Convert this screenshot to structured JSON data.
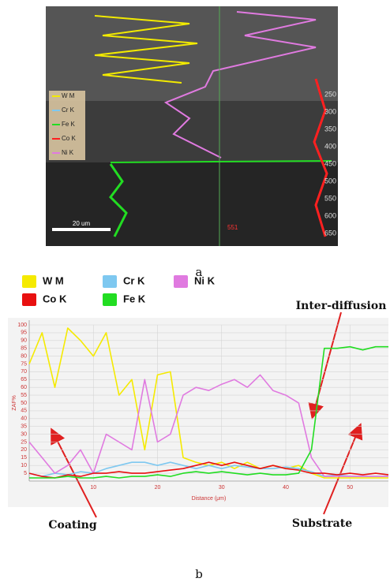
{
  "figure_a": {
    "caption": "a",
    "legend": [
      "W M",
      "Cr K",
      "Fe K",
      "Co K",
      "Ni K"
    ],
    "scale_bar": "20 um",
    "marker": "551",
    "depth_labels": [
      "250",
      "300",
      "350",
      "400",
      "450",
      "500",
      "550",
      "600",
      "650"
    ]
  },
  "chart_data": {
    "type": "line",
    "x_label": "Distance (μm)",
    "y_label": "ZAF%",
    "annotations": [
      "Inter-diffusion",
      "Coating",
      "Substrate"
    ],
    "x": [
      0,
      2,
      4,
      6,
      8,
      10,
      12,
      14,
      16,
      18,
      20,
      22,
      24,
      26,
      28,
      30,
      32,
      34,
      36,
      38,
      40,
      42,
      44,
      46,
      48,
      50,
      52,
      54,
      56
    ],
    "series": [
      {
        "name": "W  M",
        "color": "#f5ea00",
        "values": [
          75,
          95,
          60,
          98,
          90,
          80,
          95,
          55,
          65,
          20,
          68,
          70,
          15,
          12,
          10,
          12,
          8,
          12,
          8,
          10,
          8,
          10,
          5,
          2,
          2,
          2,
          2,
          2,
          2
        ]
      },
      {
        "name": "Cr K",
        "color": "#7ec8f0",
        "values": [
          5,
          3,
          5,
          4,
          6,
          5,
          8,
          10,
          12,
          12,
          10,
          12,
          10,
          8,
          10,
          8,
          10,
          9,
          8,
          8,
          9,
          8,
          6,
          3,
          4,
          3,
          3,
          3,
          3
        ]
      },
      {
        "name": "Ni K",
        "color": "#e07ae0",
        "values": [
          25,
          15,
          5,
          10,
          20,
          5,
          30,
          25,
          20,
          65,
          25,
          30,
          55,
          60,
          58,
          62,
          65,
          60,
          68,
          58,
          55,
          50,
          15,
          3,
          3,
          3,
          3,
          3,
          3
        ]
      },
      {
        "name": "Co K",
        "color": "#e81010",
        "values": [
          5,
          3,
          2,
          4,
          3,
          5,
          5,
          6,
          5,
          5,
          6,
          7,
          8,
          10,
          12,
          10,
          12,
          10,
          8,
          10,
          8,
          7,
          5,
          5,
          4,
          5,
          4,
          5,
          4
        ]
      },
      {
        "name": "Fe K",
        "color": "#22dd22",
        "values": [
          2,
          2,
          2,
          3,
          2,
          2,
          3,
          2,
          3,
          3,
          4,
          3,
          5,
          6,
          5,
          6,
          5,
          4,
          5,
          4,
          4,
          5,
          20,
          85,
          85,
          86,
          84,
          86,
          86
        ]
      }
    ],
    "xlim": [
      0,
      56
    ],
    "ylim": [
      0,
      100
    ],
    "xticks": [
      10,
      20,
      30,
      40,
      50
    ],
    "yticks": [
      5,
      10,
      15,
      20,
      25,
      30,
      35,
      40,
      45,
      50,
      55,
      60,
      65,
      70,
      75,
      80,
      85,
      90,
      95,
      100
    ],
    "grid": true
  },
  "caption_b": "b"
}
